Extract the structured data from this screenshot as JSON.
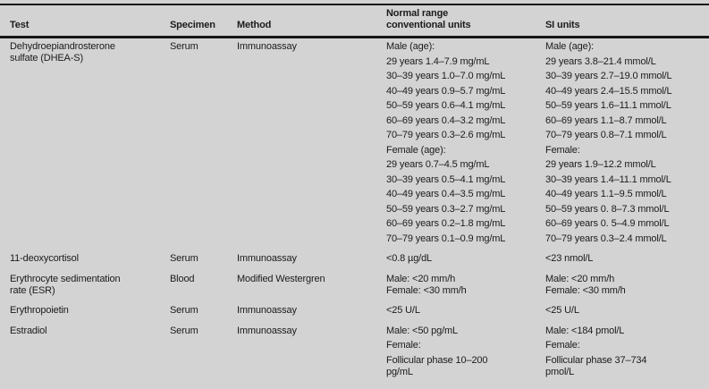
{
  "colors": {
    "background": "#d3d3d3",
    "text": "#1b1b1b",
    "rule": "#161616"
  },
  "table": {
    "columns": [
      "Test",
      "Specimen",
      "Method",
      "Normal range\nconventional units",
      "SI units"
    ],
    "rows": [
      {
        "test": [
          "Dehydroepiandrosterone\nsulfate (DHEA-S)"
        ],
        "specimen": [
          "Serum"
        ],
        "method": [
          "Immunoassay"
        ],
        "conventional": [
          "Male (age):",
          "29 years 1.4–7.9 mg/mL",
          "30–39 years 1.0–7.0 mg/mL",
          "40–49 years 0.9–5.7 mg/mL",
          "50–59 years 0.6–4.1 mg/mL",
          "60–69 years 0.4–3.2 mg/mL",
          "70–79 years 0.3–2.6 mg/mL",
          "Female (age):",
          "29 years 0.7–4.5 mg/mL",
          "30–39 years 0.5–4.1 mg/mL",
          "40–49 years 0.4–3.5 mg/mL",
          "50–59 years 0.3–2.7 mg/mL",
          "60–69 years 0.2–1.8 mg/mL",
          "70–79 years 0.1–0.9 mg/mL"
        ],
        "si": [
          "Male (age):",
          "29 years 3.8–21.4 mmol/L",
          "30–39 years 2.7–19.0 mmol/L",
          "40–49 years 2.4–15.5 mmol/L",
          "50–59 years 1.6–11.1 mmol/L",
          "60–69 years 1.1–8.7 mmol/L",
          "70–79 years 0.8–7.1 mmol/L",
          "Female:",
          "29 years 1.9–12.2 mmol/L",
          "30–39 years 1.4–11.1 mmol/L",
          "40–49 years 1.1–9.5 mmol/L",
          "50–59 years 0. 8–7.3 mmol/L",
          "60–69 years 0. 5–4.9 mmol/L",
          "70–79 years 0.3–2.4 mmol/L"
        ]
      },
      {
        "test": [
          "11-deoxycortisol"
        ],
        "specimen": [
          "Serum"
        ],
        "method": [
          "Immunoassay"
        ],
        "conventional": [
          "<0.8 µg/dL"
        ],
        "si": [
          "<23 nmol/L"
        ]
      },
      {
        "test": [
          "Erythrocyte sedimentation\nrate (ESR)"
        ],
        "specimen": [
          "Blood"
        ],
        "method": [
          "Modified Westergren"
        ],
        "conventional": [
          "Male: <20 mm/h\nFemale: <30 mm/h"
        ],
        "si": [
          "Male: <20 mm/h\nFemale: <30 mm/h"
        ]
      },
      {
        "test": [
          "Erythropoietin"
        ],
        "specimen": [
          "Serum"
        ],
        "method": [
          "Immunoassay"
        ],
        "conventional": [
          "<25 U/L"
        ],
        "si": [
          "<25 U/L"
        ]
      },
      {
        "test": [
          "Estradiol"
        ],
        "specimen": [
          "Serum"
        ],
        "method": [
          "Immunoassay"
        ],
        "conventional": [
          "Male: <50 pg/mL",
          "Female:",
          "Follicular phase 10–200\npg/mL"
        ],
        "si": [
          "Male: <184 pmol/L",
          "Female:",
          "Follicular phase 37–734\npmol/L"
        ]
      }
    ]
  }
}
